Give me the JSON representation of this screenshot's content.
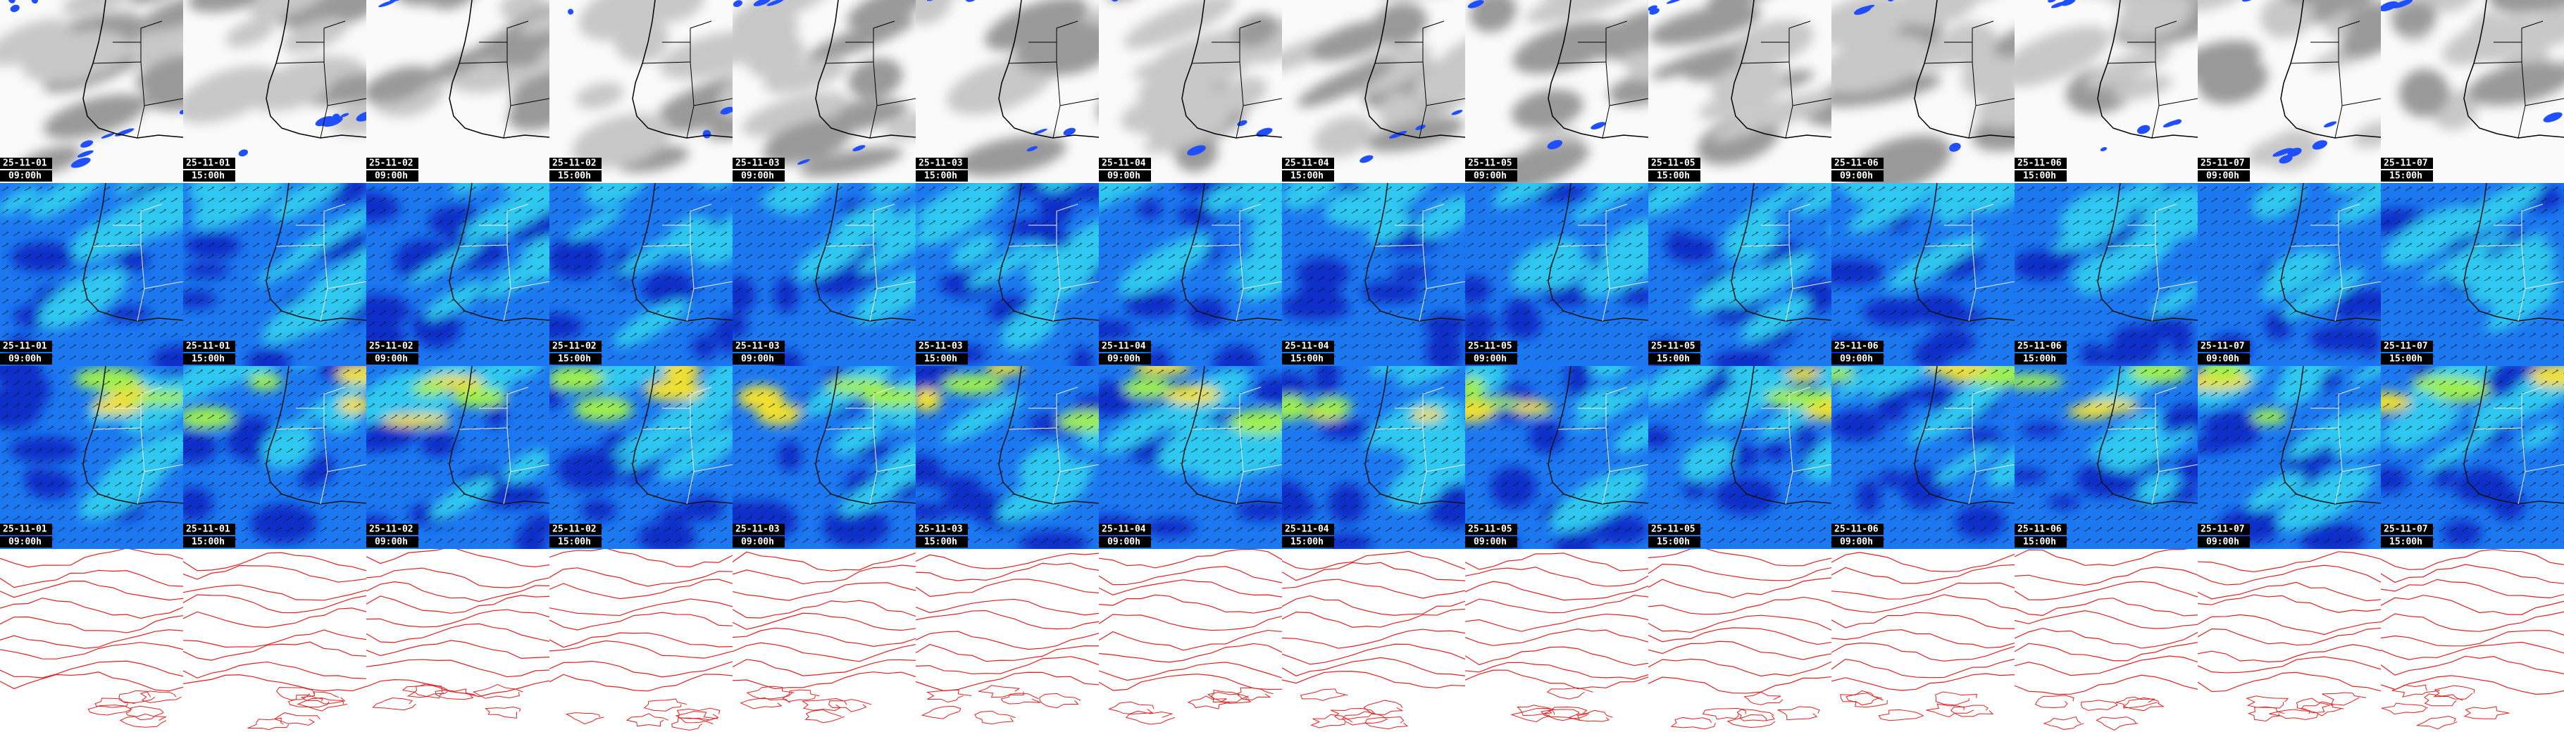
{
  "panels": {
    "dates": [
      "25-11-01",
      "25-11-01",
      "25-11-02",
      "25-11-02",
      "25-11-03",
      "25-11-03",
      "25-11-04",
      "25-11-04",
      "25-11-05",
      "25-11-05",
      "25-11-06",
      "25-11-06",
      "25-11-07",
      "25-11-07"
    ],
    "times": [
      "09:00h",
      "15:00h",
      "09:00h",
      "15:00h",
      "09:00h",
      "15:00h",
      "09:00h",
      "15:00h",
      "09:00h",
      "15:00h",
      "09:00h",
      "15:00h",
      "09:00h",
      "15:00h"
    ]
  }
}
